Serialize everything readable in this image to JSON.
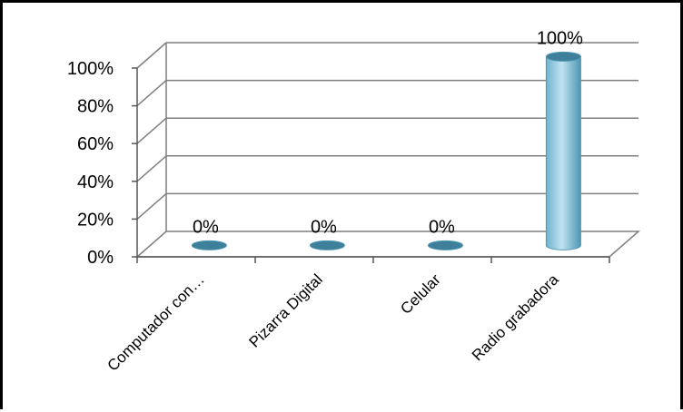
{
  "chart_data": {
    "type": "bar",
    "categories": [
      "Computador con…",
      "Pizarra Digital",
      "Celular",
      "Radio grabadora"
    ],
    "values": [
      0,
      0,
      0,
      100
    ],
    "data_labels": [
      "0%",
      "0%",
      "0%",
      "100%"
    ],
    "yticks": [
      "0%",
      "20%",
      "40%",
      "60%",
      "80%",
      "100%"
    ],
    "ylim": [
      0,
      100
    ],
    "grid": true,
    "colors": {
      "bar_light": "#bfe3f0",
      "bar_mid": "#8ccbe0",
      "bar_dark": "#4f96b3",
      "bar_top": "#3e7f9a",
      "grid": "#7f7f7f"
    }
  }
}
